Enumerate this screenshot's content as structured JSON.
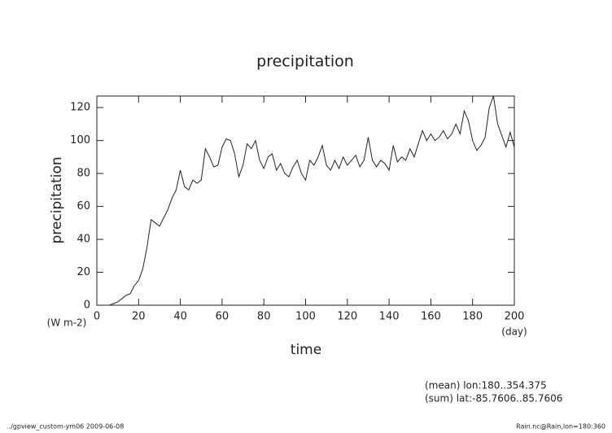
{
  "chart_data": {
    "type": "line",
    "title": "precipitation",
    "y_label": "precipitation",
    "x_label": "time",
    "y_unit": "(W m-2)",
    "x_unit": "(day)",
    "annotations": [
      "(mean) lon:180..354.375",
      "(sum) lat:-85.7606..85.7606"
    ],
    "footer_left": "../gpview_custom-ym06  2009-06-08",
    "footer_right": "Rain.nc@Rain,lon=180:360",
    "xlim": [
      0,
      200
    ],
    "ylim": [
      0,
      127
    ],
    "xticks": [
      0,
      20,
      40,
      60,
      80,
      100,
      120,
      140,
      160,
      180,
      200
    ],
    "yticks": [
      0,
      20,
      40,
      60,
      80,
      100,
      120
    ],
    "x": [
      0,
      2,
      4,
      6,
      8,
      10,
      12,
      14,
      16,
      18,
      20,
      22,
      24,
      26,
      28,
      30,
      32,
      34,
      36,
      38,
      40,
      42,
      44,
      46,
      48,
      50,
      52,
      54,
      56,
      58,
      60,
      62,
      64,
      66,
      68,
      70,
      72,
      74,
      76,
      78,
      80,
      82,
      84,
      86,
      88,
      90,
      92,
      94,
      96,
      98,
      100,
      102,
      104,
      106,
      108,
      110,
      112,
      114,
      116,
      118,
      120,
      122,
      124,
      126,
      128,
      130,
      132,
      134,
      136,
      138,
      140,
      142,
      144,
      146,
      148,
      150,
      152,
      154,
      156,
      158,
      160,
      162,
      164,
      166,
      168,
      170,
      172,
      174,
      176,
      178,
      180,
      182,
      184,
      186,
      188,
      190,
      192,
      194,
      196,
      198,
      200
    ],
    "series": [
      {
        "color": "#222222",
        "values": [
          0,
          0,
          0,
          0,
          1,
          2,
          4,
          6,
          7,
          12,
          15,
          22,
          35,
          52,
          50,
          48,
          53,
          58,
          65,
          70,
          82,
          72,
          70,
          76,
          74,
          76,
          95,
          90,
          84,
          85,
          96,
          101,
          100,
          92,
          78,
          85,
          98,
          95,
          100,
          88,
          83,
          90,
          92,
          82,
          86,
          80,
          78,
          84,
          88,
          80,
          76,
          88,
          85,
          90,
          97,
          85,
          82,
          88,
          83,
          90,
          85,
          88,
          91,
          84,
          88,
          102,
          88,
          84,
          88,
          86,
          82,
          97,
          87,
          90,
          88,
          95,
          90,
          98,
          106,
          100,
          104,
          100,
          102,
          106,
          101,
          104,
          110,
          104,
          118,
          112,
          100,
          94,
          97,
          102,
          120,
          127,
          110,
          103,
          96,
          105,
          96
        ]
      }
    ]
  }
}
